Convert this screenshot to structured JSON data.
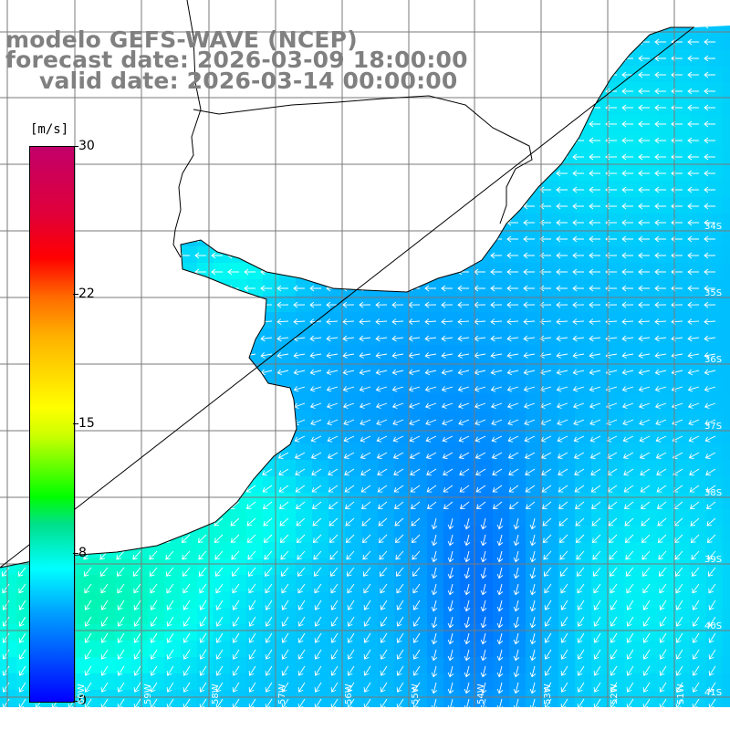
{
  "title": {
    "line1": "modelo GEFS-WAVE (NCEP)",
    "line2": "forecast date: 2026-03-09 18:00:00",
    "line3": "valid date: 2026-03-14 00:00:00"
  },
  "colorbar": {
    "unit": "[m/s]",
    "ticks": [
      "30",
      "22",
      "15",
      "8",
      "0"
    ],
    "tick_values": [
      30,
      22,
      15,
      8,
      0
    ],
    "min": 0,
    "max": 30
  },
  "lat_labels": [
    "34S",
    "35S",
    "36S",
    "37S",
    "38S",
    "39S",
    "40S",
    "41S"
  ],
  "lat_label_values": [
    -34,
    -35,
    -36,
    -37,
    -38,
    -39,
    -40,
    -41
  ],
  "lon_labels": [
    "60W",
    "59W",
    "58W",
    "57W",
    "56W",
    "55W",
    "54W",
    "53W",
    "52W",
    "51W"
  ],
  "lon_label_values": [
    -60,
    -59,
    -58,
    -57,
    -56,
    -55,
    -54,
    -53,
    -52,
    -51
  ],
  "map": {
    "region": "Rio de la Plata / South Atlantic",
    "land_color": "#ffffff",
    "coastline_color": "#000000",
    "grid_color": "#7a7a7a",
    "arrow_color": "#ffffff",
    "field": "wind speed",
    "wind_flow": "from the east turning to north-easterly in the south"
  }
}
